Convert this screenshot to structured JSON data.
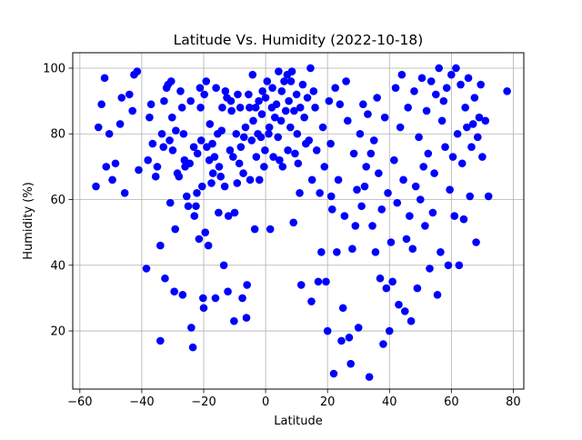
{
  "chart_data": {
    "type": "scatter",
    "title": "Latitude Vs. Humidity (2022-10-18)",
    "xlabel": "Latitude",
    "ylabel": "Humidity (%)",
    "xlim": [
      -62.3,
      83.4
    ],
    "ylim": [
      2.3,
      104.7
    ],
    "xticks": [
      -60,
      -40,
      -20,
      0,
      20,
      40,
      60,
      80
    ],
    "yticks": [
      20,
      40,
      60,
      80,
      100
    ],
    "grid": true,
    "legend": "none",
    "marker_color": "#0000ff",
    "series": [
      {
        "marker": "circle",
        "points": [
          [
            -54.8,
            64
          ],
          [
            -54,
            82
          ],
          [
            -53,
            89
          ],
          [
            -52,
            97
          ],
          [
            -51.5,
            70
          ],
          [
            -50.5,
            80
          ],
          [
            -49.5,
            66
          ],
          [
            -48.5,
            71
          ],
          [
            -47,
            83
          ],
          [
            -46.5,
            91
          ],
          [
            -45.5,
            62
          ],
          [
            -44,
            92
          ],
          [
            -43,
            87
          ],
          [
            -42.5,
            98
          ],
          [
            -41.5,
            99
          ],
          [
            -41,
            69
          ],
          [
            -38.5,
            39
          ],
          [
            -38,
            72
          ],
          [
            -37.5,
            85
          ],
          [
            -37,
            89
          ],
          [
            -36.5,
            77
          ],
          [
            -35.5,
            67
          ],
          [
            -35,
            70
          ],
          [
            -34,
            17
          ],
          [
            -34,
            46
          ],
          [
            -33.5,
            80
          ],
          [
            -33,
            76
          ],
          [
            -32.8,
            90
          ],
          [
            -32.5,
            36
          ],
          [
            -32,
            94
          ],
          [
            -31.5,
            95
          ],
          [
            -31,
            78
          ],
          [
            -30.8,
            59
          ],
          [
            -30.5,
            96
          ],
          [
            -30.2,
            85
          ],
          [
            -30,
            75
          ],
          [
            -29.5,
            32
          ],
          [
            -29.2,
            51
          ],
          [
            -29,
            81
          ],
          [
            -28.5,
            68
          ],
          [
            -28,
            67
          ],
          [
            -27.5,
            93
          ],
          [
            -27,
            88
          ],
          [
            -26.8,
            31
          ],
          [
            -26.5,
            80
          ],
          [
            -26.2,
            72
          ],
          [
            -26,
            70
          ],
          [
            -25.5,
            61
          ],
          [
            -25,
            58
          ],
          [
            -24.5,
            71
          ],
          [
            -24.2,
            90
          ],
          [
            -24,
            21
          ],
          [
            -23.5,
            15
          ],
          [
            -23.2,
            76
          ],
          [
            -23,
            55
          ],
          [
            -22.5,
            58
          ],
          [
            -22.2,
            62
          ],
          [
            -22,
            74
          ],
          [
            -21.5,
            48
          ],
          [
            -21.2,
            94
          ],
          [
            -21,
            88
          ],
          [
            -20.8,
            78
          ],
          [
            -20.5,
            64
          ],
          [
            -20.2,
            30
          ],
          [
            -20,
            27
          ],
          [
            -19.8,
            92
          ],
          [
            -19.5,
            50
          ],
          [
            -19.2,
            96
          ],
          [
            -19,
            76
          ],
          [
            -18.5,
            46
          ],
          [
            -18.2,
            72
          ],
          [
            -18,
            83
          ],
          [
            -17.5,
            65
          ],
          [
            -17.2,
            77
          ],
          [
            -17,
            68
          ],
          [
            -16.5,
            73
          ],
          [
            -16.2,
            30
          ],
          [
            -16,
            94
          ],
          [
            -15.5,
            80
          ],
          [
            -15.2,
            56
          ],
          [
            -15,
            70
          ],
          [
            -14.5,
            67
          ],
          [
            -14.2,
            81
          ],
          [
            -14,
            88
          ],
          [
            -13.5,
            40
          ],
          [
            -13.2,
            64
          ],
          [
            -13,
            93
          ],
          [
            -12.5,
            91
          ],
          [
            -12.2,
            32
          ],
          [
            -12,
            55
          ],
          [
            -11.5,
            75
          ],
          [
            -11.2,
            90
          ],
          [
            -11,
            87
          ],
          [
            -10.5,
            73
          ],
          [
            -10.2,
            23
          ],
          [
            -10,
            56
          ],
          [
            -9.5,
            80
          ],
          [
            -9.2,
            65
          ],
          [
            -9,
            92
          ],
          [
            -8.5,
            71
          ],
          [
            -8.2,
            88
          ],
          [
            -8,
            76
          ],
          [
            -7.5,
            30
          ],
          [
            -7.2,
            68
          ],
          [
            -7,
            79
          ],
          [
            -6.5,
            82
          ],
          [
            -6.2,
            24
          ],
          [
            -6,
            34
          ],
          [
            -5.5,
            92
          ],
          [
            -5.2,
            88
          ],
          [
            -5,
            66
          ],
          [
            -4.5,
            78
          ],
          [
            -4.2,
            98
          ],
          [
            -4,
            84
          ],
          [
            -3.5,
            51
          ],
          [
            -3.2,
            88
          ],
          [
            -3,
            73
          ],
          [
            -2.5,
            80
          ],
          [
            -2.2,
            90
          ],
          [
            -2,
            66
          ],
          [
            -1.5,
            79
          ],
          [
            -1.2,
            86
          ],
          [
            -1,
            93
          ],
          [
            -0.5,
            70
          ],
          [
            -0.2,
            75
          ],
          [
            0,
            91
          ],
          [
            0.5,
            96
          ],
          [
            1,
            80
          ],
          [
            1.2,
            82
          ],
          [
            1.5,
            51
          ],
          [
            2,
            88
          ],
          [
            2.2,
            94
          ],
          [
            2.5,
            73
          ],
          [
            3,
            85
          ],
          [
            3.5,
            89
          ],
          [
            4,
            79
          ],
          [
            4.2,
            99
          ],
          [
            4.5,
            72
          ],
          [
            5,
            84
          ],
          [
            5.2,
            93
          ],
          [
            5.5,
            70
          ],
          [
            6,
            96
          ],
          [
            6.5,
            87
          ],
          [
            7,
            98
          ],
          [
            7.2,
            75
          ],
          [
            7.5,
            90
          ],
          [
            8,
            82
          ],
          [
            8.2,
            96
          ],
          [
            8.5,
            99
          ],
          [
            9,
            53
          ],
          [
            9.2,
            87
          ],
          [
            9.5,
            74
          ],
          [
            10,
            92
          ],
          [
            10.2,
            80
          ],
          [
            10.5,
            71
          ],
          [
            11,
            62
          ],
          [
            11.2,
            88
          ],
          [
            11.5,
            34
          ],
          [
            12,
            95
          ],
          [
            12.5,
            85
          ],
          [
            13,
            77
          ],
          [
            13.5,
            91
          ],
          [
            14,
            78
          ],
          [
            14.5,
            100
          ],
          [
            14.8,
            29
          ],
          [
            15,
            66
          ],
          [
            15.5,
            93
          ],
          [
            16,
            88
          ],
          [
            16.5,
            75
          ],
          [
            17,
            35
          ],
          [
            17.5,
            62
          ],
          [
            18,
            44
          ],
          [
            18.5,
            82
          ],
          [
            19,
            70
          ],
          [
            19.5,
            35
          ],
          [
            20,
            20
          ],
          [
            20.5,
            90
          ],
          [
            21,
            77
          ],
          [
            21.2,
            61
          ],
          [
            21.5,
            57
          ],
          [
            22,
            7
          ],
          [
            22.5,
            94
          ],
          [
            23,
            44
          ],
          [
            23.5,
            66
          ],
          [
            24,
            89
          ],
          [
            24.5,
            17
          ],
          [
            25,
            27
          ],
          [
            25.5,
            55
          ],
          [
            26,
            96
          ],
          [
            26.5,
            84
          ],
          [
            27,
            18
          ],
          [
            27.5,
            10
          ],
          [
            28,
            45
          ],
          [
            28.5,
            74
          ],
          [
            29,
            52
          ],
          [
            29.5,
            63
          ],
          [
            30,
            21
          ],
          [
            30.5,
            80
          ],
          [
            31,
            58
          ],
          [
            31.5,
            89
          ],
          [
            32,
            64
          ],
          [
            32.5,
            70
          ],
          [
            33,
            86
          ],
          [
            33.5,
            6
          ],
          [
            34,
            74
          ],
          [
            34.5,
            52
          ],
          [
            35,
            78
          ],
          [
            35.5,
            44
          ],
          [
            36,
            91
          ],
          [
            36.5,
            68
          ],
          [
            37,
            36
          ],
          [
            37.5,
            57
          ],
          [
            38,
            16
          ],
          [
            38.5,
            85
          ],
          [
            39,
            33
          ],
          [
            39.5,
            62
          ],
          [
            40,
            20
          ],
          [
            40.5,
            47
          ],
          [
            41,
            35
          ],
          [
            41.5,
            72
          ],
          [
            42,
            94
          ],
          [
            42.5,
            59
          ],
          [
            43,
            28
          ],
          [
            43.5,
            82
          ],
          [
            44,
            98
          ],
          [
            44.5,
            66
          ],
          [
            45,
            26
          ],
          [
            45.5,
            48
          ],
          [
            46,
            88
          ],
          [
            46.5,
            55
          ],
          [
            47,
            23
          ],
          [
            47.5,
            45
          ],
          [
            48,
            93
          ],
          [
            48.5,
            64
          ],
          [
            49,
            33
          ],
          [
            49.5,
            79
          ],
          [
            50,
            60
          ],
          [
            50.5,
            97
          ],
          [
            51,
            70
          ],
          [
            51.5,
            52
          ],
          [
            52,
            87
          ],
          [
            52.5,
            74
          ],
          [
            53,
            39
          ],
          [
            53.5,
            96
          ],
          [
            54,
            56
          ],
          [
            54.5,
            68
          ],
          [
            55,
            92
          ],
          [
            55.5,
            31
          ],
          [
            56,
            100
          ],
          [
            56.5,
            44
          ],
          [
            57,
            84
          ],
          [
            57.5,
            90
          ],
          [
            58,
            76
          ],
          [
            58.5,
            94
          ],
          [
            59,
            40
          ],
          [
            59.5,
            63
          ],
          [
            60,
            98
          ],
          [
            60.5,
            73
          ],
          [
            61,
            55
          ],
          [
            61.5,
            100
          ],
          [
            62,
            80
          ],
          [
            62.5,
            40
          ],
          [
            63,
            95
          ],
          [
            63.5,
            71
          ],
          [
            64,
            54
          ],
          [
            64.5,
            88
          ],
          [
            65,
            82
          ],
          [
            65.5,
            97
          ],
          [
            66,
            61
          ],
          [
            66.5,
            76
          ],
          [
            67,
            83
          ],
          [
            67.5,
            91
          ],
          [
            68,
            47
          ],
          [
            68.5,
            79
          ],
          [
            69,
            85
          ],
          [
            69.5,
            95
          ],
          [
            70,
            73
          ],
          [
            71,
            84
          ],
          [
            72,
            61
          ],
          [
            78,
            93
          ]
        ]
      }
    ]
  }
}
